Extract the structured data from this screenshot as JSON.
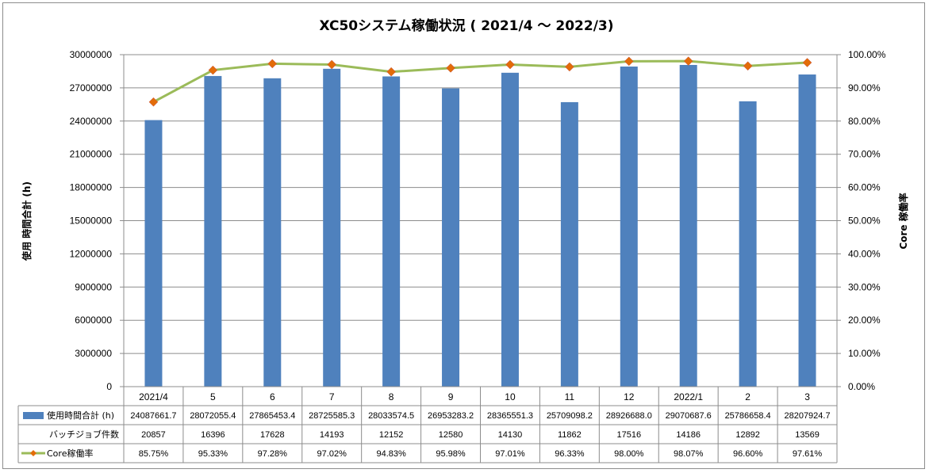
{
  "chart_data": {
    "type": "bar",
    "title": "XC50システム稼働状況 ( 2021/4 ～ 2022/3)",
    "categories": [
      "2021/4",
      "5",
      "6",
      "7",
      "8",
      "9",
      "10",
      "11",
      "12",
      "2022/1",
      "2",
      "3"
    ],
    "ylabel": "使用 時間合計 (h)",
    "y2label": "Core 稼働率",
    "ylim": [
      0,
      30000000
    ],
    "y2lim": [
      0,
      100
    ],
    "yticks": [
      "0",
      "3000000",
      "6000000",
      "9000000",
      "12000000",
      "15000000",
      "18000000",
      "21000000",
      "24000000",
      "27000000",
      "30000000"
    ],
    "y2ticks": [
      "0.00%",
      "10.00%",
      "20.00%",
      "30.00%",
      "40.00%",
      "50.00%",
      "60.00%",
      "70.00%",
      "80.00%",
      "90.00%",
      "100.00%"
    ],
    "series": [
      {
        "name": "使用時間合計 (h)",
        "kind": "bar",
        "axis": "left",
        "color": "#4f81bd",
        "values": [
          24087661.7,
          28072055.4,
          27865453.4,
          28725585.3,
          28033574.5,
          26953283.2,
          28365551.3,
          25709098.2,
          28926688.0,
          29070687.6,
          25786658.4,
          28207924.7
        ],
        "labels": [
          "24087661.7",
          "28072055.4",
          "27865453.4",
          "28725585.3",
          "28033574.5",
          "26953283.2",
          "28365551.3",
          "25709098.2",
          "28926688.0",
          "29070687.6",
          "25786658.4",
          "28207924.7"
        ]
      },
      {
        "name": "バッチジョブ件数",
        "kind": "table-only",
        "values": [
          20857,
          16396,
          17628,
          14193,
          12152,
          12580,
          14130,
          11862,
          17516,
          14186,
          12892,
          13569
        ],
        "labels": [
          "20857",
          "16396",
          "17628",
          "14193",
          "12152",
          "12580",
          "14130",
          "11862",
          "17516",
          "14186",
          "12892",
          "13569"
        ]
      },
      {
        "name": "Core稼働率",
        "kind": "line",
        "axis": "right",
        "color": "#9bbb59",
        "marker_color": "#e36c09",
        "values": [
          85.75,
          95.33,
          97.28,
          97.02,
          94.83,
          95.98,
          97.01,
          96.33,
          98.0,
          98.07,
          96.6,
          97.61
        ],
        "labels": [
          "85.75%",
          "95.33%",
          "97.28%",
          "97.02%",
          "94.83%",
          "95.98%",
          "97.01%",
          "96.33%",
          "98.00%",
          "98.07%",
          "96.60%",
          "97.61%"
        ]
      }
    ],
    "grid": true,
    "legend": "data-table"
  }
}
